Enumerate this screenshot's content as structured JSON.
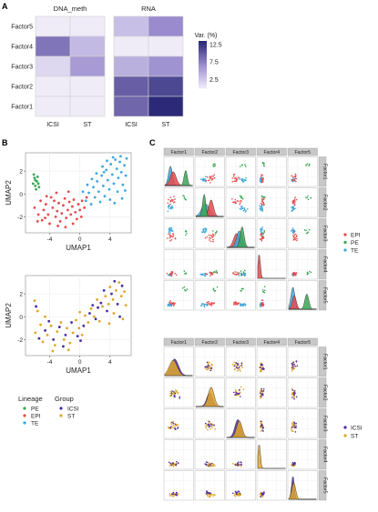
{
  "panels": {
    "a": "A",
    "b": "B",
    "c": "C"
  },
  "colors": {
    "EPI": "#e64b4b",
    "PE": "#3aa655",
    "TE": "#3fa8dc",
    "ICSI": "#4b2aa0",
    "ST": "#e0a62b",
    "heat_low": "#ffffff",
    "heat_high": "#2c2a78",
    "strip_bg": "#c8c8c8",
    "panel_bg": "#ffffff",
    "grid": "#ececec"
  },
  "chart_data": [
    {
      "id": "heatmap",
      "type": "heatmap",
      "groups": [
        {
          "title": "DNA_meth",
          "columns": [
            "ICSI",
            "ST"
          ]
        },
        {
          "title": "RNA",
          "columns": [
            "ICSI",
            "ST"
          ]
        }
      ],
      "rows": [
        "Factor5",
        "Factor4",
        "Factor3",
        "Factor2",
        "Factor1"
      ],
      "values": [
        [
          0.4,
          0.4,
          3.5,
          7.0
        ],
        [
          8.5,
          3.8,
          0.4,
          0.4
        ],
        [
          1.8,
          6.0,
          4.5,
          6.5
        ],
        [
          0.4,
          0.4,
          10.0,
          11.5
        ],
        [
          0.4,
          0.4,
          9.5,
          13.5
        ]
      ],
      "legend": {
        "title": "Var. (%)",
        "ticks": [
          12.5,
          7.5,
          2.5
        ],
        "range": [
          0,
          13.5
        ]
      }
    },
    {
      "id": "umap_lineage",
      "type": "scatter",
      "xlabel": "UMAP1",
      "ylabel": "UMAP2",
      "xticks": [
        -4,
        0,
        4
      ],
      "yticks": [
        -2,
        0,
        2
      ],
      "xlim": [
        -7.2,
        6.8
      ],
      "ylim": [
        -3.4,
        3.6
      ],
      "series": [
        {
          "name": "PE",
          "color_key": "PE",
          "points": [
            [
              -6.0,
              1.4
            ],
            [
              -5.7,
              1.1
            ],
            [
              -5.9,
              0.7
            ],
            [
              -5.5,
              0.9
            ],
            [
              -6.2,
              0.9
            ],
            [
              -5.8,
              0.4
            ],
            [
              -5.6,
              1.5
            ],
            [
              -6.1,
              1.7
            ],
            [
              -5.4,
              0.6
            ],
            [
              -5.9,
              1.2
            ]
          ]
        },
        {
          "name": "EPI",
          "color_key": "EPI",
          "points": [
            [
              -6.0,
              -1.2
            ],
            [
              -5.5,
              -1.8
            ],
            [
              -5.0,
              -2.3
            ],
            [
              -4.8,
              -1.4
            ],
            [
              -4.5,
              -0.9
            ],
            [
              -4.2,
              -1.8
            ],
            [
              -4.0,
              -2.6
            ],
            [
              -3.6,
              -1.2
            ],
            [
              -3.4,
              -0.6
            ],
            [
              -3.2,
              -2.0
            ],
            [
              -3.0,
              -1.5
            ],
            [
              -2.8,
              -0.8
            ],
            [
              -2.6,
              -2.4
            ],
            [
              -2.4,
              -1.7
            ],
            [
              -2.2,
              -1.0
            ],
            [
              -2.0,
              -0.4
            ],
            [
              -1.8,
              -2.1
            ],
            [
              -1.6,
              -1.4
            ],
            [
              -1.4,
              -0.7
            ],
            [
              -1.2,
              -1.8
            ],
            [
              -1.0,
              -1.1
            ],
            [
              -0.8,
              -0.5
            ],
            [
              -0.6,
              -1.6
            ],
            [
              -0.4,
              -2.2
            ],
            [
              -0.2,
              -0.9
            ],
            [
              0.0,
              -1.4
            ],
            [
              0.3,
              -0.6
            ],
            [
              0.6,
              -1.2
            ],
            [
              0.9,
              -0.3
            ],
            [
              -5.2,
              -0.6
            ],
            [
              -4.6,
              -2.1
            ],
            [
              -3.8,
              -0.3
            ],
            [
              -2.9,
              -2.8
            ],
            [
              -1.9,
              -2.9
            ],
            [
              -0.9,
              -2.6
            ],
            [
              0.2,
              -2.0
            ],
            [
              -5.6,
              -2.4
            ],
            [
              -4.4,
              -0.2
            ],
            [
              -3.1,
              0.1
            ],
            [
              -1.5,
              0.2
            ]
          ]
        },
        {
          "name": "TE",
          "color_key": "TE",
          "points": [
            [
              0.4,
              0.2
            ],
            [
              0.8,
              -0.6
            ],
            [
              1.2,
              0.1
            ],
            [
              1.5,
              -0.9
            ],
            [
              1.8,
              0.6
            ],
            [
              2.0,
              -0.3
            ],
            [
              2.3,
              1.1
            ],
            [
              2.5,
              0.2
            ],
            [
              2.7,
              -0.7
            ],
            [
              2.9,
              1.6
            ],
            [
              3.1,
              0.7
            ],
            [
              3.3,
              -0.2
            ],
            [
              3.5,
              2.1
            ],
            [
              3.7,
              1.2
            ],
            [
              3.9,
              0.4
            ],
            [
              4.1,
              2.6
            ],
            [
              4.3,
              1.7
            ],
            [
              4.5,
              0.9
            ],
            [
              4.7,
              3.0
            ],
            [
              4.9,
              2.2
            ],
            [
              5.1,
              1.4
            ],
            [
              5.3,
              2.8
            ],
            [
              5.5,
              1.9
            ],
            [
              5.7,
              0.8
            ],
            [
              5.9,
              2.5
            ],
            [
              6.1,
              1.6
            ],
            [
              6.2,
              3.1
            ],
            [
              4.4,
              3.2
            ],
            [
              3.6,
              2.9
            ],
            [
              5.0,
              0.2
            ],
            [
              5.6,
              -0.4
            ],
            [
              4.6,
              -0.8
            ],
            [
              3.0,
              2.4
            ],
            [
              2.2,
              1.8
            ],
            [
              1.6,
              1.3
            ],
            [
              1.0,
              0.8
            ],
            [
              6.0,
              0.3
            ],
            [
              4.0,
              -0.5
            ],
            [
              5.4,
              3.3
            ],
            [
              3.2,
              1.9
            ]
          ]
        }
      ]
    },
    {
      "id": "umap_group",
      "type": "scatter",
      "xlabel": "UMAP1",
      "ylabel": "UMAP2",
      "xticks": [
        -4,
        0,
        4
      ],
      "yticks": [
        -2,
        0,
        2
      ],
      "xlim": [
        -7.2,
        6.8
      ],
      "ylim": [
        -3.4,
        3.6
      ],
      "series": [
        {
          "name": "ICSI",
          "color_key": "ICSI",
          "points": [
            [
              -5.8,
              0.9
            ],
            [
              -4.6,
              -1.2
            ],
            [
              -3.5,
              -2.0
            ],
            [
              -2.7,
              -0.9
            ],
            [
              -1.9,
              -1.6
            ],
            [
              -1.1,
              -0.5
            ],
            [
              -0.3,
              -1.7
            ],
            [
              0.5,
              -0.8
            ],
            [
              1.3,
              0.3
            ],
            [
              2.1,
              -0.2
            ],
            [
              2.8,
              1.2
            ],
            [
              3.6,
              0.5
            ],
            [
              4.2,
              2.0
            ],
            [
              5.0,
              1.1
            ],
            [
              5.6,
              2.7
            ],
            [
              4.6,
              3.1
            ],
            [
              3.2,
              2.3
            ],
            [
              1.7,
              1.0
            ],
            [
              -4.1,
              -0.4
            ],
            [
              -2.2,
              -2.6
            ],
            [
              0.1,
              -2.1
            ],
            [
              2.4,
              0.8
            ],
            [
              5.3,
              0.0
            ],
            [
              -5.4,
              -1.9
            ]
          ]
        },
        {
          "name": "ST",
          "color_key": "ST",
          "points": [
            [
              -6.0,
              1.4
            ],
            [
              -5.6,
              0.5
            ],
            [
              -5.2,
              -0.7
            ],
            [
              -4.9,
              -2.2
            ],
            [
              -4.3,
              -1.6
            ],
            [
              -3.8,
              -0.8
            ],
            [
              -3.3,
              -2.5
            ],
            [
              -3.0,
              -1.3
            ],
            [
              -2.5,
              -0.5
            ],
            [
              -2.1,
              -2.0
            ],
            [
              -1.7,
              -1.0
            ],
            [
              -1.3,
              -2.3
            ],
            [
              -0.9,
              -1.4
            ],
            [
              -0.5,
              -0.3
            ],
            [
              -0.1,
              -1.0
            ],
            [
              0.3,
              -1.6
            ],
            [
              0.7,
              0.1
            ],
            [
              1.1,
              -0.5
            ],
            [
              1.5,
              0.7
            ],
            [
              1.9,
              0.0
            ],
            [
              2.3,
              1.5
            ],
            [
              2.6,
              -0.4
            ],
            [
              3.0,
              0.9
            ],
            [
              3.4,
              1.8
            ],
            [
              3.8,
              1.1
            ],
            [
              4.0,
              2.6
            ],
            [
              4.4,
              1.5
            ],
            [
              4.8,
              2.3
            ],
            [
              5.2,
              3.0
            ],
            [
              5.5,
              1.8
            ],
            [
              5.9,
              2.2
            ],
            [
              6.1,
              1.0
            ],
            [
              4.5,
              0.3
            ],
            [
              3.9,
              -0.6
            ],
            [
              5.7,
              -0.2
            ],
            [
              -5.9,
              -1.4
            ],
            [
              -4.6,
              0.0
            ],
            [
              -3.6,
              -3.0
            ],
            [
              -1.5,
              -2.9
            ],
            [
              0.0,
              0.4
            ]
          ]
        }
      ]
    },
    {
      "id": "pairs_lineage",
      "type": "scatter",
      "factors": [
        "Factor1",
        "Factor2",
        "Factor3",
        "Factor4",
        "Factor5"
      ],
      "series": [
        "EPI",
        "PE",
        "TE"
      ]
    },
    {
      "id": "pairs_group",
      "type": "scatter",
      "factors": [
        "Factor1",
        "Factor2",
        "Factor3",
        "Factor4",
        "Factor5"
      ],
      "series": [
        "ICSI",
        "ST"
      ]
    }
  ],
  "legends": {
    "lineage": {
      "title": "Lineage",
      "items": [
        "PE",
        "EPI",
        "TE"
      ]
    },
    "group": {
      "title": "Group",
      "items": [
        "ICSI",
        "ST"
      ]
    },
    "pairs_lineage": {
      "items": [
        "EPI",
        "PE",
        "TE"
      ]
    },
    "pairs_group": {
      "items": [
        "ICSI",
        "ST"
      ]
    }
  }
}
